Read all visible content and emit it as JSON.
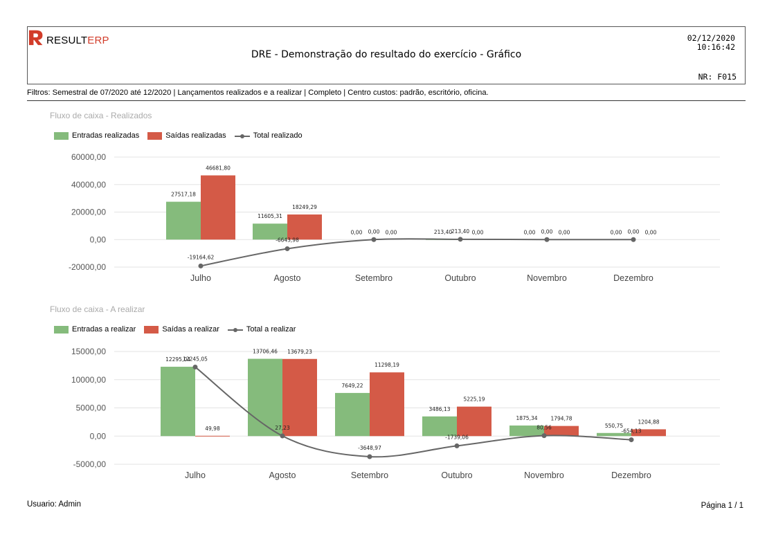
{
  "header": {
    "logo_brand": "RESULT",
    "logo_suffix": "ERP",
    "title": "DRE - Demonstração do resultado do exercício - Gráfico",
    "date": "02/12/2020",
    "time": "10:16:42",
    "nr": "NR: F015",
    "brand_color": "#d23c2a"
  },
  "filters": "Filtros: Semestral de 07/2020 até 12/2020 | Lançamentos realizados e a realizar | Completo | Centro custos: padrão, escritório, oficina.",
  "footer": {
    "user": "Usuario: Admin",
    "page": "Página 1 / 1"
  },
  "chart_data": [
    {
      "type": "bar",
      "title": "Fluxo de caixa - Realizados",
      "categories": [
        "Julho",
        "Agosto",
        "Setembro",
        "Outubro",
        "Novembro",
        "Dezembro"
      ],
      "ylim": [
        -20000,
        60000
      ],
      "yticks": [
        -20000,
        0,
        20000,
        40000,
        60000
      ],
      "ytick_labels": [
        "-20000,00",
        "0,00",
        "20000,00",
        "40000,00",
        "60000,00"
      ],
      "grid": true,
      "legend_position": "top-left",
      "series": [
        {
          "name": "Entradas realizadas",
          "kind": "bar",
          "color": "#85bb7c",
          "values": [
            27517.18,
            11605.31,
            0,
            213.4,
            0,
            0
          ],
          "labels": [
            "27517,18",
            "11605,31",
            "0,00",
            "213,40",
            "0,00",
            "0,00"
          ]
        },
        {
          "name": "Saídas realizadas",
          "kind": "bar",
          "color": "#d45a47",
          "values": [
            46681.8,
            18249.29,
            0,
            0,
            0,
            0
          ],
          "labels": [
            "46681,80",
            "18249,29",
            "0,00",
            "0,00",
            "0,00",
            "0,00"
          ]
        },
        {
          "name": "Total realizado",
          "kind": "line",
          "color": "#666666",
          "values": [
            -19164.62,
            -6643.98,
            0,
            213.4,
            0,
            0
          ],
          "labels": [
            "-19164,62",
            "-6643,98",
            "0,00",
            "213,40",
            "0,00",
            "0,00"
          ]
        }
      ]
    },
    {
      "type": "bar",
      "title": "Fluxo de caixa - A realizar",
      "categories": [
        "Julho",
        "Agosto",
        "Setembro",
        "Outubro",
        "Novembro",
        "Dezembro"
      ],
      "ylim": [
        -5000,
        15000
      ],
      "yticks": [
        -5000,
        0,
        5000,
        10000,
        15000
      ],
      "ytick_labels": [
        "-5000,00",
        "0,00",
        "5000,00",
        "10000,00",
        "15000,00"
      ],
      "grid": true,
      "legend_position": "top-left",
      "series": [
        {
          "name": "Entradas a realizar",
          "kind": "bar",
          "color": "#85bb7c",
          "values": [
            12295.04,
            13706.46,
            7649.22,
            3486.13,
            1875.34,
            550.75
          ],
          "labels": [
            "12295,04",
            "13706,46",
            "7649,22",
            "3486,13",
            "1875,34",
            "550,75"
          ]
        },
        {
          "name": "Saídas a realizar",
          "kind": "bar",
          "color": "#d45a47",
          "values": [
            49.98,
            13679.23,
            11298.19,
            5225.19,
            1794.78,
            1204.88
          ],
          "labels": [
            "49,98",
            "13679,23",
            "11298,19",
            "5225,19",
            "1794,78",
            "1204,88"
          ]
        },
        {
          "name": "Total a realizar",
          "kind": "line",
          "color": "#666666",
          "values": [
            12245.05,
            27.23,
            -3648.97,
            -1739.06,
            80.56,
            -654.13
          ],
          "labels": [
            "12245,05",
            "27,23",
            "-3648,97",
            "-1739,06",
            "80,56",
            "-654,13"
          ]
        }
      ]
    }
  ]
}
